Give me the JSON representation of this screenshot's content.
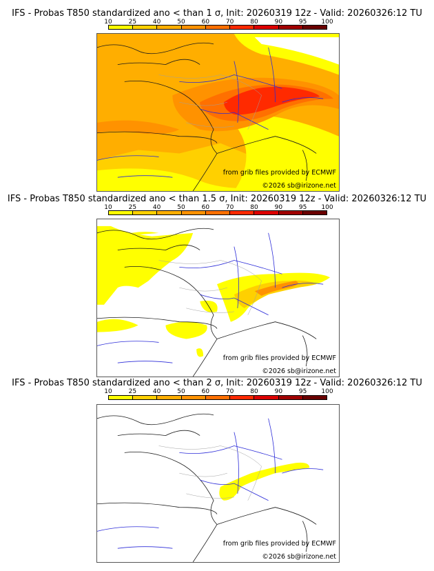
{
  "colorbar": {
    "ticks": [
      "10",
      "25",
      "40",
      "50",
      "60",
      "70",
      "80",
      "90",
      "95",
      "100"
    ],
    "colors": [
      "#ffff00",
      "#ffd000",
      "#ffae00",
      "#ff9200",
      "#ff7000",
      "#ff2a00",
      "#dd0000",
      "#a00000",
      "#6a0000"
    ]
  },
  "panels": [
    {
      "title": "IFS - Probas T850  standardized ano < than 1 σ, Init: 20260319 12z - Valid: 20260326:12 TU",
      "credit_source": "from grib files provided by ECMWF",
      "credit_copyright": "©2026 sb@irizone.net",
      "threshold_sigma": 1
    },
    {
      "title": "IFS - Probas T850  standardized ano < than 1.5 σ, Init: 20260319 12z - Valid: 20260326:12 TU",
      "credit_source": "from grib files provided by ECMWF",
      "credit_copyright": "©2026 sb@irizone.net",
      "threshold_sigma": 1.5
    },
    {
      "title": "IFS - Probas T850  standardized ano < than 2 σ, Init: 20260319 12z - Valid: 20260326:12 TU",
      "credit_source": "from grib files provided by ECMWF",
      "credit_copyright": "©2026 sb@irizone.net",
      "threshold_sigma": 2
    }
  ]
}
